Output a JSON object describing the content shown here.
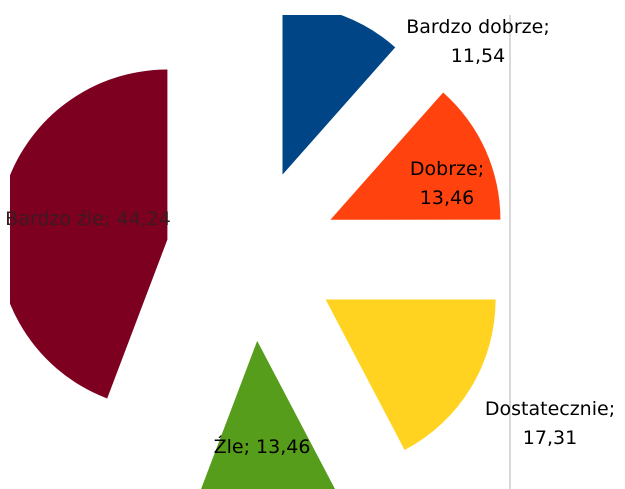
{
  "chart_data": {
    "type": "pie",
    "categories": [
      "Bardzo dobrze",
      "Dobrze",
      "Dostatecznie",
      "Źle",
      "Bardzo źle"
    ],
    "values": [
      11.54,
      13.46,
      17.31,
      13.46,
      44.24
    ],
    "value_labels": [
      "11,54",
      "13,46",
      "17,31",
      "13,46",
      "44,24"
    ],
    "label_separator": "; ",
    "colors": [
      "#004586",
      "#ff420e",
      "#ffd320",
      "#579d1c",
      "#7e0021"
    ],
    "exploded": true
  }
}
